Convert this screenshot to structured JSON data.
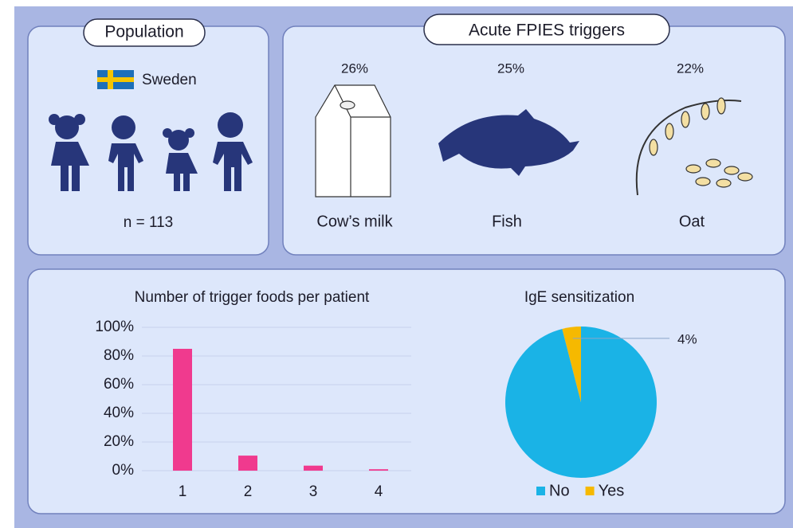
{
  "population": {
    "title": "Population",
    "country": "Sweden",
    "n": "n = 113"
  },
  "triggers": {
    "title": "Acute FPIES triggers",
    "items": [
      {
        "label": "Cow’s milk",
        "percent": "26%"
      },
      {
        "label": "Fish",
        "percent": "25%"
      },
      {
        "label": "Oat",
        "percent": "22%"
      }
    ]
  },
  "chart_data": [
    {
      "type": "bar",
      "title": "Number of trigger foods per patient",
      "categories": [
        "1",
        "2",
        "3",
        "4"
      ],
      "values": [
        85,
        10.5,
        3.5,
        1
      ],
      "color": "#f03a8e",
      "ylim": [
        0,
        100
      ],
      "yticks": [
        {
          "value": 0,
          "label": "0%"
        },
        {
          "value": 20,
          "label": "20%"
        },
        {
          "value": 40,
          "label": "40%"
        },
        {
          "value": 60,
          "label": "60%"
        },
        {
          "value": 80,
          "label": "80%"
        },
        {
          "value": 100,
          "label": "100%"
        }
      ],
      "grid": true
    },
    {
      "type": "pie",
      "title": "IgE sensitization",
      "categories": [
        "No",
        "Yes"
      ],
      "values": [
        96,
        4
      ],
      "value_labels": [
        null,
        "4%"
      ],
      "colors": [
        "#1ab3e6",
        "#f6b900"
      ],
      "legend": "bottom"
    }
  ]
}
